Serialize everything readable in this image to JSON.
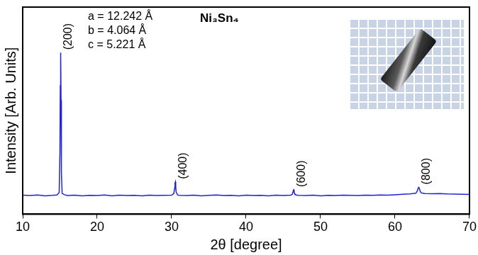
{
  "chart_data": {
    "type": "line",
    "title": "Ni₃Sn₄",
    "annotations": [
      "a = 12.242 Å",
      "b = 4.064 Å",
      "c = 5.221 Å"
    ],
    "x_label": "2θ [degree]",
    "y_label": "Intensity [Arb. Units]",
    "x": [
      10,
      11,
      12,
      13,
      14,
      14.6,
      14.9,
      15.0,
      15.05,
      15.1,
      15.15,
      15.2,
      15.3,
      15.6,
      16,
      17,
      18,
      19,
      20,
      21,
      22,
      23,
      24,
      25,
      26,
      27,
      28,
      29,
      30,
      30.3,
      30.4,
      30.45,
      30.5,
      30.55,
      30.6,
      30.8,
      31,
      32,
      33,
      34,
      35,
      36,
      37,
      38,
      39,
      40,
      41,
      42,
      43,
      44,
      45,
      46,
      46.2,
      46.3,
      46.35,
      46.4,
      46.45,
      46.5,
      46.7,
      47,
      48,
      49,
      50,
      51,
      52,
      53,
      54,
      55,
      56,
      57,
      58,
      59,
      60,
      61,
      62,
      62.8,
      63.0,
      63.1,
      63.2,
      63.3,
      63.4,
      63.6,
      64,
      65,
      66,
      67,
      68,
      69,
      70
    ],
    "values": [
      9.2,
      9.0,
      9.3,
      8.9,
      9.1,
      9.3,
      10.5,
      30,
      62,
      78,
      55,
      20,
      10,
      9.4,
      9.0,
      9.2,
      8.9,
      9.1,
      9.0,
      9.3,
      8.9,
      9.2,
      9.0,
      9.1,
      8.9,
      9.2,
      9.0,
      9.1,
      9.2,
      10,
      12.5,
      15,
      15.6,
      13.5,
      10.8,
      9.3,
      9.1,
      9.0,
      9.2,
      8.9,
      9.1,
      9.3,
      9.0,
      9.1,
      8.9,
      9.2,
      9.0,
      9.1,
      8.9,
      9.2,
      9.0,
      9.2,
      9.6,
      10.8,
      11.6,
      11.8,
      11.0,
      10.0,
      9.3,
      9.1,
      9.0,
      9.2,
      8.9,
      9.1,
      9.0,
      9.2,
      9.1,
      9.0,
      9.2,
      9.1,
      9.3,
      9.2,
      9.4,
      9.6,
      9.8,
      10.1,
      11.3,
      12.6,
      13.0,
      12.0,
      10.8,
      10.2,
      10.0,
      9.9,
      10.0,
      9.8,
      9.7,
      9.6,
      9.5
    ],
    "color": "#1f22d6",
    "peak_labels": [
      {
        "x": 15.1,
        "label": "(200)"
      },
      {
        "x": 30.5,
        "label": "(400)"
      },
      {
        "x": 46.4,
        "label": "(600)"
      },
      {
        "x": 63.2,
        "label": "(800)"
      }
    ],
    "xlim": [
      10,
      70
    ],
    "xticks": [
      10,
      20,
      30,
      40,
      50,
      60,
      70
    ],
    "ylim": [
      0,
      100
    ],
    "grid": false,
    "tick_labels": "x"
  }
}
